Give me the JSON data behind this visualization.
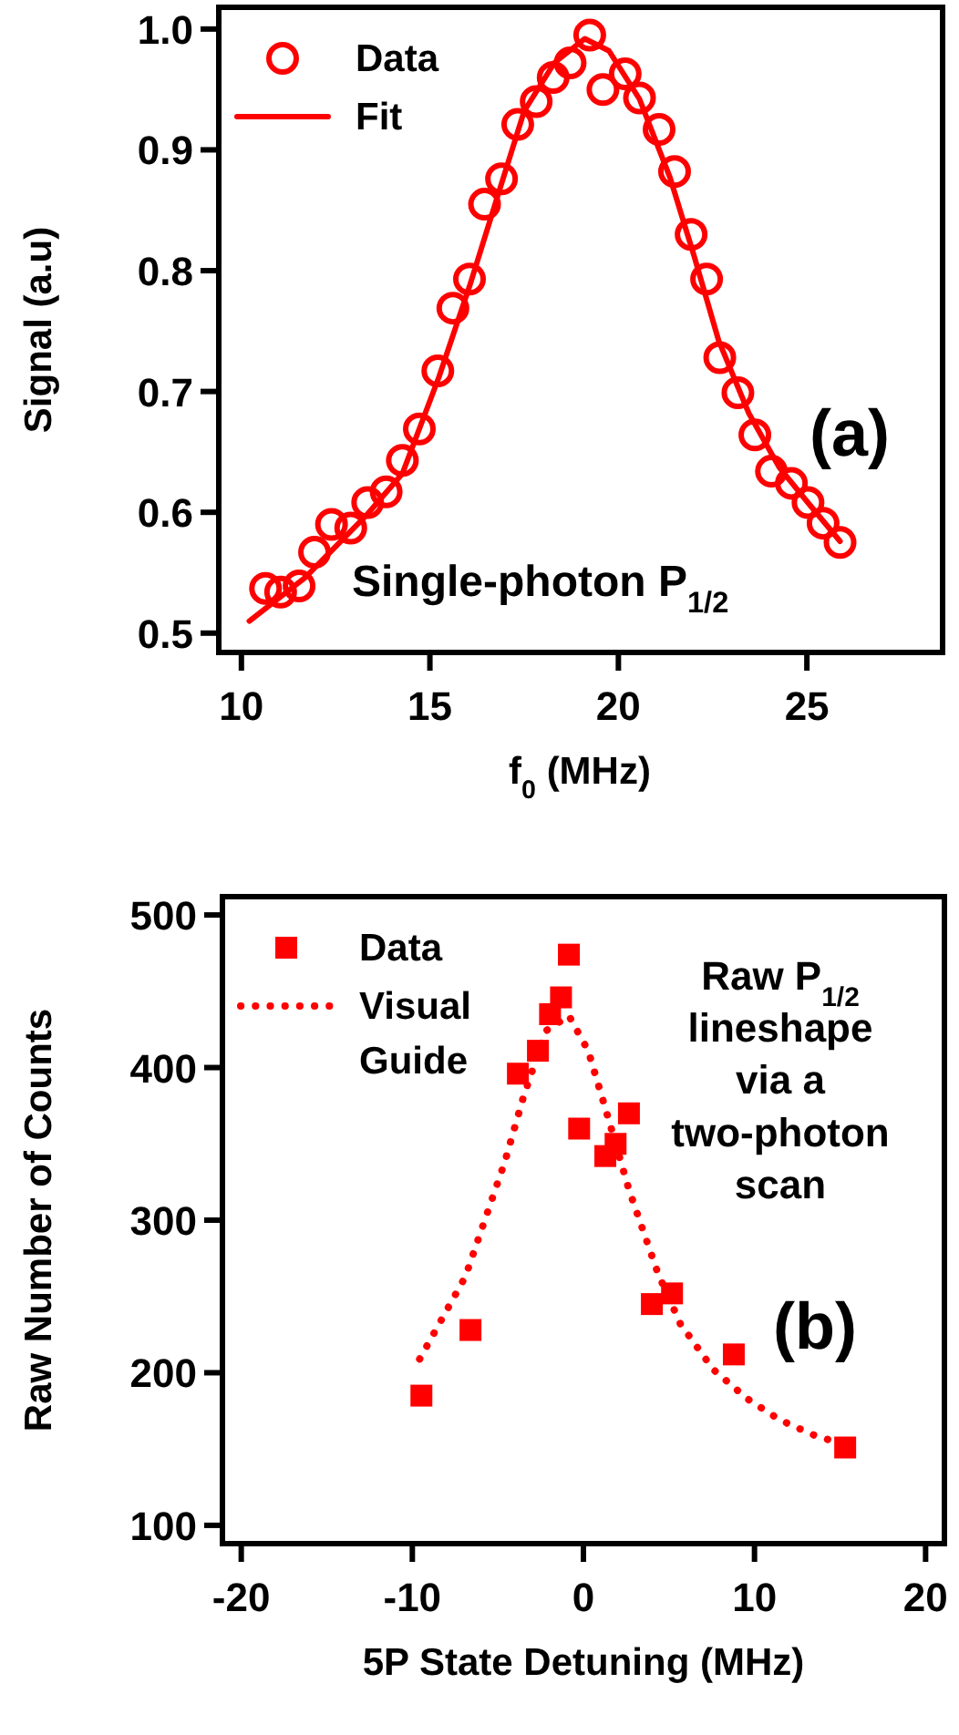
{
  "chart_data": [
    {
      "type": "scatter",
      "xlabel": "f$_{0}$ (MHz)",
      "ylabel": "Signal (a.u)",
      "xlim": [
        9.4,
        28.6
      ],
      "ylim": [
        0.484,
        1.018
      ],
      "xticks": [
        10,
        15,
        20,
        25
      ],
      "yticks": [
        0.5,
        0.6,
        0.7,
        0.8,
        0.9,
        {
          "value": 1,
          "label": "1.0"
        }
      ],
      "grid": false,
      "legend": "top left",
      "annotations": [
        "(a)",
        "Single-photon P$_{1/2}$"
      ],
      "series": [
        {
          "name": "Data",
          "type": "scatter",
          "marker": "circle",
          "color": "#ff0000",
          "x": [
            10.64,
            11.04,
            11.53,
            11.94,
            12.39,
            12.9,
            13.35,
            13.84,
            14.27,
            14.72,
            15.21,
            15.61,
            16.05,
            16.45,
            16.9,
            17.33,
            17.82,
            18.27,
            18.72,
            19.24,
            19.59,
            20.18,
            20.56,
            21.08,
            21.49,
            21.93,
            22.34,
            22.69,
            23.17,
            23.62,
            24.06,
            24.59,
            25.03,
            25.43,
            25.88
          ],
          "values": [
            0.537,
            0.534,
            0.539,
            0.567,
            0.59,
            0.587,
            0.608,
            0.617,
            0.643,
            0.669,
            0.717,
            0.769,
            0.793,
            0.855,
            0.876,
            0.921,
            0.94,
            0.96,
            0.972,
            0.995,
            0.95,
            0.963,
            0.943,
            0.917,
            0.882,
            0.83,
            0.793,
            0.728,
            0.699,
            0.664,
            0.634,
            0.624,
            0.608,
            0.591,
            0.575
          ]
        },
        {
          "name": "Fit",
          "type": "line",
          "marker": "none",
          "line_style": "solid",
          "color": "#ff0000",
          "x": [
            10.21,
            11.69,
            13.3,
            14.27,
            15.24,
            16.05,
            16.85,
            17.5,
            18.3,
            19.11,
            19.75,
            20.56,
            21.37,
            22.01,
            22.66,
            23.46,
            24.27,
            25.08,
            25.88
          ],
          "values": [
            0.51,
            0.546,
            0.597,
            0.632,
            0.712,
            0.787,
            0.867,
            0.932,
            0.972,
            0.992,
            0.982,
            0.942,
            0.877,
            0.812,
            0.742,
            0.682,
            0.637,
            0.606,
            0.576
          ]
        }
      ]
    },
    {
      "type": "scatter",
      "xlabel": "5P State Detuning (MHz)",
      "ylabel": "Raw Number of Counts",
      "xlim": [
        -21.1,
        21.1
      ],
      "ylim": [
        88,
        512
      ],
      "xticks": [
        -20,
        -10,
        0,
        10,
        20
      ],
      "yticks": [
        100,
        200,
        300,
        400,
        500
      ],
      "grid": false,
      "legend": "top left",
      "annotations": [
        "(b)",
        "Raw P$_{1/2}$\nlineshape\nvia a\ntwo-photon\nscan"
      ],
      "series": [
        {
          "name": "Data",
          "type": "scatter",
          "marker": "square",
          "color": "#ff0000",
          "x": [
            -9.47,
            -6.6,
            -3.83,
            -2.66,
            -1.95,
            -1.31,
            -0.85,
            -0.25,
            1.28,
            1.88,
            2.66,
            4.0,
            5.18,
            8.79,
            15.3
          ],
          "values": [
            185,
            228,
            396,
            411,
            435,
            446,
            474,
            360,
            342,
            350,
            370,
            245,
            252,
            212,
            151
          ]
        },
        {
          "name": "Visual Guide",
          "type": "line",
          "marker": "none",
          "line_style": "dotted",
          "color": "#ff0000",
          "x": [
            -9.57,
            -6.9,
            -4.6,
            -3.5,
            -2.2,
            -0.85,
            0.28,
            1.42,
            2.66,
            4.36,
            5.67,
            7.6,
            9.57,
            11.5,
            13.5,
            15.2
          ],
          "values": [
            209,
            263,
            338,
            381,
            424,
            434,
            411,
            368,
            320,
            265,
            232,
            202,
            183,
            169,
            159,
            153
          ]
        }
      ]
    }
  ]
}
